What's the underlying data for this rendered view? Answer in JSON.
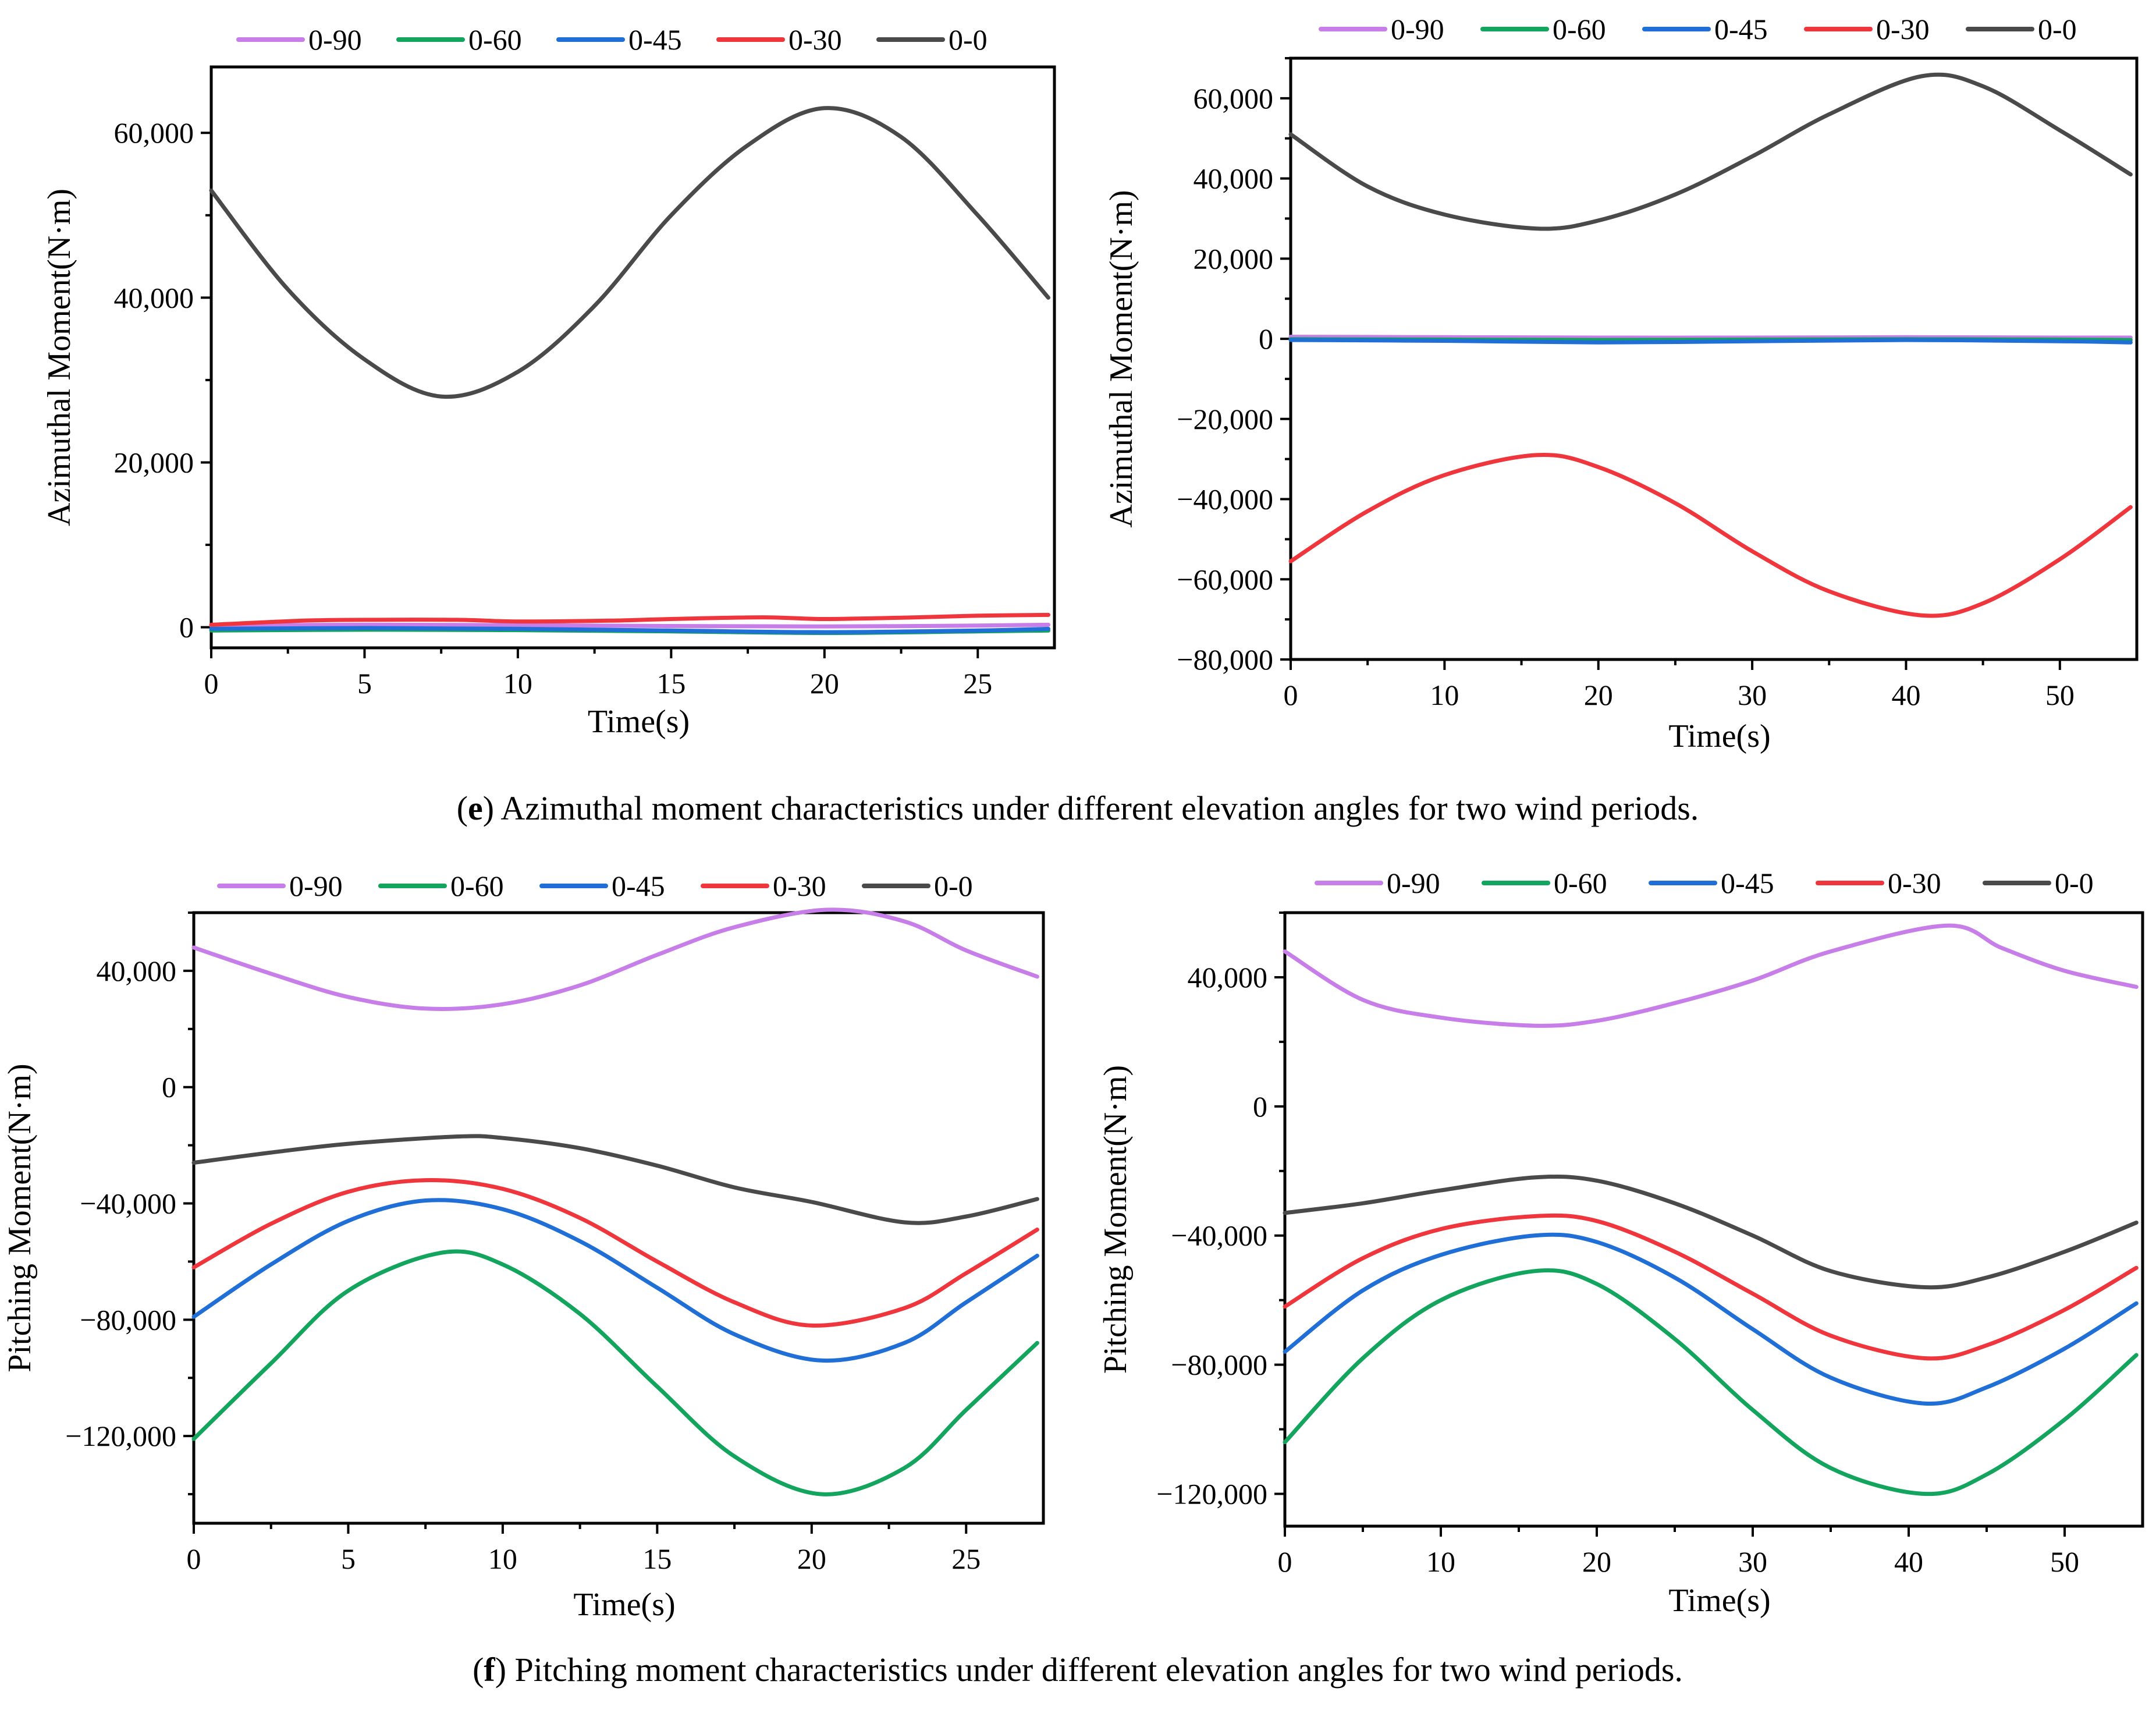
{
  "captions": {
    "e_letter": "e",
    "e_text": ") Azimuthal moment characteristics under different elevation angles for two wind periods.",
    "f_letter": "f",
    "f_text": ") Pitching moment characteristics under different elevation angles for two wind periods."
  },
  "colors": {
    "0-90": "#c77ee8",
    "0-60": "#13a45e",
    "0-45": "#1f6fd6",
    "0-30": "#f0363d",
    "0-0": "#4a4a4a"
  },
  "chart_data": [
    {
      "id": "chart-e-left",
      "type": "line",
      "title": "",
      "xlabel": "Time(s)",
      "ylabel": "Azimuthal Moment(N·m)",
      "xlim": [
        0,
        27.5
      ],
      "ylim": [
        -2500,
        68000
      ],
      "xticks": [
        0,
        5,
        10,
        15,
        20,
        25
      ],
      "xtick_labels": [
        "0",
        "5",
        "10",
        "15",
        "20",
        "25"
      ],
      "yticks": [
        0,
        20000,
        40000,
        60000
      ],
      "ytick_labels": [
        "0",
        "20,000",
        "40,000",
        "60,000"
      ],
      "legend": [
        "0-90",
        "0-60",
        "0-45",
        "0-30",
        "0-0"
      ],
      "legend_position": "top",
      "series": [
        {
          "name": "0-90",
          "x": [
            0,
            5,
            10,
            15,
            20,
            25,
            27.3
          ],
          "values": [
            200,
            300,
            250,
            150,
            100,
            200,
            300
          ]
        },
        {
          "name": "0-60",
          "x": [
            0,
            5,
            10,
            15,
            20,
            25,
            27.3
          ],
          "values": [
            -400,
            -300,
            -350,
            -500,
            -700,
            -500,
            -400
          ]
        },
        {
          "name": "0-45",
          "x": [
            0,
            5,
            10,
            15,
            20,
            25,
            27.3
          ],
          "values": [
            -200,
            -100,
            -200,
            -400,
            -600,
            -400,
            -200
          ]
        },
        {
          "name": "0-30",
          "x": [
            0,
            3,
            5,
            8,
            10,
            13,
            15,
            18,
            20,
            23,
            25,
            27.3
          ],
          "values": [
            300,
            800,
            900,
            900,
            700,
            800,
            1000,
            1200,
            1000,
            1200,
            1400,
            1500
          ]
        },
        {
          "name": "0-0",
          "x": [
            0,
            2.5,
            5,
            7.5,
            10,
            12.5,
            15,
            17.5,
            20,
            22.5,
            25,
            27.3
          ],
          "values": [
            53000,
            41000,
            32500,
            28000,
            31000,
            39000,
            50000,
            58500,
            63000,
            59500,
            50000,
            40000
          ]
        }
      ]
    },
    {
      "id": "chart-e-right",
      "type": "line",
      "title": "",
      "xlabel": "Time(s)",
      "ylabel": "Azimuthal Moment(N·m)",
      "xlim": [
        0,
        55
      ],
      "ylim": [
        -80000,
        70000
      ],
      "xticks": [
        0,
        10,
        20,
        30,
        40,
        50
      ],
      "xtick_labels": [
        "0",
        "10",
        "20",
        "30",
        "40",
        "50"
      ],
      "yticks": [
        -80000,
        -60000,
        -40000,
        -20000,
        0,
        20000,
        40000,
        60000
      ],
      "ytick_labels": [
        "−80,000",
        "−60,000",
        "−40,000",
        "−20,000",
        "0",
        "20,000",
        "40,000",
        "60,000"
      ],
      "legend": [
        "0-90",
        "0-60",
        "0-45",
        "0-30",
        "0-0"
      ],
      "legend_position": "top",
      "series": [
        {
          "name": "0-90",
          "x": [
            0,
            10,
            20,
            30,
            40,
            50,
            54.6
          ],
          "values": [
            500,
            400,
            300,
            300,
            400,
            300,
            300
          ]
        },
        {
          "name": "0-60",
          "x": [
            0,
            10,
            20,
            30,
            40,
            50,
            54.6
          ],
          "values": [
            -100,
            -200,
            -300,
            -200,
            -100,
            -200,
            -300
          ]
        },
        {
          "name": "0-45",
          "x": [
            0,
            10,
            20,
            30,
            40,
            50,
            54.6
          ],
          "values": [
            -300,
            -500,
            -900,
            -600,
            -300,
            -600,
            -900
          ]
        },
        {
          "name": "0-30",
          "x": [
            0,
            5,
            10,
            16,
            20,
            25,
            30,
            35,
            41,
            45,
            50,
            54.6
          ],
          "values": [
            -55500,
            -43000,
            -34000,
            -29000,
            -32000,
            -41000,
            -53000,
            -63000,
            -69000,
            -66000,
            -55000,
            -42000
          ]
        },
        {
          "name": "0-0",
          "x": [
            0,
            5,
            10,
            16,
            20,
            25,
            30,
            35,
            41,
            45,
            50,
            54.6
          ],
          "values": [
            51000,
            38000,
            31000,
            27500,
            29500,
            36000,
            45500,
            56000,
            65500,
            63000,
            52000,
            41000
          ]
        }
      ]
    },
    {
      "id": "chart-f-left",
      "type": "line",
      "title": "",
      "xlabel": "Time(s)",
      "ylabel": "Pitching Moment(N·m)",
      "xlim": [
        0,
        27.5
      ],
      "ylim": [
        -150000,
        60000
      ],
      "xticks": [
        0,
        5,
        10,
        15,
        20,
        25
      ],
      "xtick_labels": [
        "0",
        "5",
        "10",
        "15",
        "20",
        "25"
      ],
      "yticks": [
        -120000,
        -80000,
        -40000,
        0,
        40000
      ],
      "ytick_labels": [
        "−120,000",
        "−80,000",
        "−40,000",
        "0",
        "40,000"
      ],
      "legend": [
        "0-90",
        "0-60",
        "0-45",
        "0-30",
        "0-0"
      ],
      "legend_position": "top",
      "series": [
        {
          "name": "0-90",
          "x": [
            0,
            2.5,
            5,
            7.5,
            10,
            12.5,
            15,
            17.5,
            20.5,
            23,
            25,
            27.3
          ],
          "values": [
            48000,
            39000,
            31000,
            27000,
            28500,
            35000,
            45500,
            55000,
            61000,
            57000,
            47000,
            38000
          ]
        },
        {
          "name": "0-60",
          "x": [
            0,
            2.5,
            5,
            8,
            10,
            12.5,
            15,
            17.5,
            20.3,
            23,
            25,
            27.3
          ],
          "values": [
            -121000,
            -95000,
            -70000,
            -57000,
            -61000,
            -78000,
            -103000,
            -127000,
            -140000,
            -131000,
            -111000,
            -88000
          ]
        },
        {
          "name": "0-45",
          "x": [
            0,
            2.5,
            5,
            7.5,
            10,
            12.5,
            15,
            17.5,
            20.3,
            23,
            25,
            27.3
          ],
          "values": [
            -79000,
            -61000,
            -46000,
            -39000,
            -42000,
            -53000,
            -69000,
            -85000,
            -94000,
            -88000,
            -74000,
            -58000
          ]
        },
        {
          "name": "0-30",
          "x": [
            0,
            2.5,
            5,
            7.5,
            10,
            12.5,
            15,
            17.5,
            20,
            23,
            25,
            27.3
          ],
          "values": [
            -62000,
            -47000,
            -36000,
            -32000,
            -35000,
            -45000,
            -60000,
            -74000,
            -82000,
            -76000,
            -64000,
            -49000
          ]
        },
        {
          "name": "0-0",
          "x": [
            0,
            2.5,
            5,
            8.5,
            10,
            12.5,
            15,
            17.5,
            20,
            23,
            25,
            27.3
          ],
          "values": [
            -26000,
            -22500,
            -19500,
            -17000,
            -17500,
            -21000,
            -27000,
            -34500,
            -39500,
            -46500,
            -44500,
            -38500
          ]
        }
      ]
    },
    {
      "id": "chart-f-right",
      "type": "line",
      "title": "",
      "xlabel": "Time(s)",
      "ylabel": "Pitching Moment(N·m)",
      "xlim": [
        0,
        55
      ],
      "ylim": [
        -130000,
        60000
      ],
      "xticks": [
        0,
        10,
        20,
        30,
        40,
        50
      ],
      "xtick_labels": [
        "0",
        "10",
        "20",
        "30",
        "40",
        "50"
      ],
      "yticks": [
        -120000,
        -80000,
        -40000,
        0,
        40000
      ],
      "ytick_labels": [
        "−120,000",
        "−80,000",
        "−40,000",
        "0",
        "40,000"
      ],
      "legend": [
        "0-90",
        "0-60",
        "0-45",
        "0-30",
        "0-0"
      ],
      "legend_position": "top",
      "series": [
        {
          "name": "0-90",
          "x": [
            0,
            5,
            10,
            16,
            20,
            25,
            30,
            35,
            42.5,
            46,
            50,
            54.6
          ],
          "values": [
            48000,
            33000,
            27500,
            25000,
            26500,
            32000,
            39000,
            48000,
            56000,
            49000,
            42000,
            37000
          ]
        },
        {
          "name": "0-60",
          "x": [
            0,
            5,
            10,
            16,
            20,
            25,
            30,
            35,
            41,
            45,
            50,
            54.6
          ],
          "values": [
            -104000,
            -78000,
            -60000,
            -51000,
            -55000,
            -72000,
            -94000,
            -112000,
            -120000,
            -114000,
            -97000,
            -77000
          ]
        },
        {
          "name": "0-45",
          "x": [
            0,
            5,
            10,
            16,
            20,
            25,
            30,
            35,
            41,
            45,
            50,
            54.6
          ],
          "values": [
            -76000,
            -57000,
            -46000,
            -40000,
            -42000,
            -53000,
            -69000,
            -84000,
            -92000,
            -87000,
            -75000,
            -61000
          ]
        },
        {
          "name": "0-30",
          "x": [
            0,
            5,
            10,
            16,
            20,
            25,
            30,
            35,
            41,
            45,
            50,
            54.6
          ],
          "values": [
            -62000,
            -47000,
            -38000,
            -34000,
            -35500,
            -45000,
            -58000,
            -71000,
            -78000,
            -74000,
            -63000,
            -50000
          ]
        },
        {
          "name": "0-0",
          "x": [
            0,
            5,
            10,
            16,
            20,
            25,
            30,
            35,
            41,
            45,
            50,
            54.6
          ],
          "values": [
            -33000,
            -30000,
            -26000,
            -22000,
            -23000,
            -30000,
            -40000,
            -51000,
            -56000,
            -53000,
            -45000,
            -36000
          ]
        }
      ]
    }
  ]
}
